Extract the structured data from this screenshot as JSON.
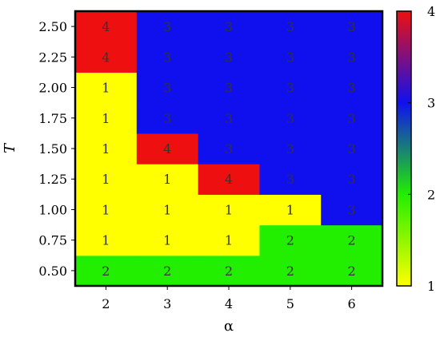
{
  "chart_data": {
    "type": "heatmap",
    "xlabel": "α",
    "ylabel": "T",
    "x": [
      "2",
      "3",
      "4",
      "5",
      "6"
    ],
    "y": [
      "0.50",
      "0.75",
      "1.00",
      "1.25",
      "1.50",
      "1.75",
      "2.00",
      "2.25",
      "2.50"
    ],
    "values": [
      [
        2,
        2,
        2,
        2,
        2
      ],
      [
        1,
        1,
        1,
        2,
        2
      ],
      [
        1,
        1,
        1,
        1,
        3
      ],
      [
        1,
        1,
        4,
        3,
        3
      ],
      [
        1,
        4,
        3,
        3,
        3
      ],
      [
        1,
        3,
        3,
        3,
        3
      ],
      [
        1,
        3,
        3,
        3,
        3
      ],
      [
        4,
        3,
        3,
        3,
        3
      ],
      [
        4,
        3,
        3,
        3,
        3
      ]
    ],
    "colorbar": {
      "ticks": [
        "1",
        "2",
        "3",
        "4"
      ],
      "range": [
        1,
        4
      ]
    },
    "colors": {
      "1": "#ffff00",
      "2": "#22ee00",
      "3": "#1010ee",
      "4": "#ee1010"
    }
  }
}
